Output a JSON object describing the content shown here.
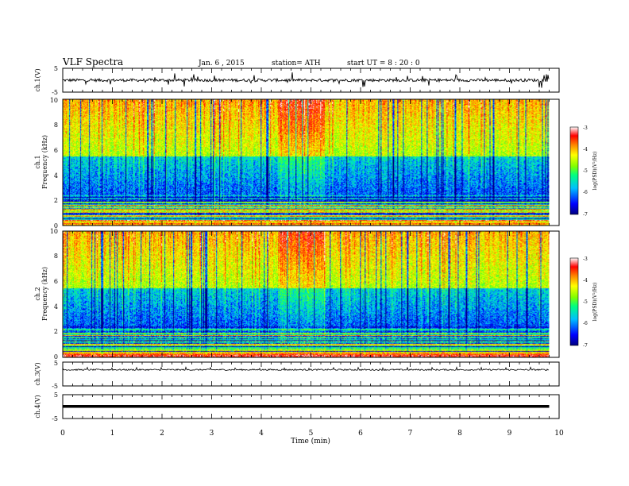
{
  "header": {
    "title": "VLF  Spectra",
    "date": "Jan. 6 , 2015",
    "station": "station= ATH",
    "start": "start  UT  =   8 : 20 : 0"
  },
  "colors": {
    "colormap": [
      "#000080",
      "#0000ff",
      "#00bfff",
      "#00ff80",
      "#80ff00",
      "#ffff00",
      "#ff8000",
      "#ff0000",
      "#ffffff"
    ]
  },
  "chart_data": [
    {
      "type": "line",
      "id": "ch1-waveform",
      "ylabel": "ch.1(V)",
      "ylim": [
        -5,
        5
      ],
      "yticks": [
        "5",
        "-5"
      ],
      "baseline": 0,
      "amplitude": 1.2
    },
    {
      "type": "heatmap",
      "id": "ch1-spectrogram",
      "ylabel_channel": "ch.1",
      "ylabel": "Frequency  (kHz)",
      "ylim": [
        0,
        10
      ],
      "yticks": [
        "0",
        "2",
        "4",
        "6",
        "8",
        "10"
      ],
      "colorbar": {
        "label": "log(PSD)(V²/Hz)",
        "range": [
          -7,
          -3
        ],
        "ticks": [
          "-3",
          "-4",
          "-5",
          "-6",
          "-7"
        ]
      }
    },
    {
      "type": "heatmap",
      "id": "ch2-spectrogram",
      "ylabel_channel": "ch.2",
      "ylabel": "Frequency  (kHz)",
      "ylim": [
        0,
        10
      ],
      "yticks": [
        "0",
        "2",
        "4",
        "6",
        "8",
        "10"
      ],
      "colorbar": {
        "label": "log(PSD)(V²/Hz)",
        "range": [
          -7,
          -3
        ],
        "ticks": [
          "-3",
          "-4",
          "-5",
          "-6",
          "-7"
        ]
      }
    },
    {
      "type": "line",
      "id": "ch3-waveform",
      "ylabel": "ch.3(V)",
      "ylim": [
        -5,
        5
      ],
      "yticks": [
        "5",
        "-5"
      ],
      "baseline": 1.8,
      "amplitude": 0.6
    },
    {
      "type": "line",
      "id": "ch4-waveform",
      "ylabel": "ch.4(V)",
      "ylim": [
        -5,
        5
      ],
      "yticks": [
        "5",
        "-5"
      ],
      "baseline": 0,
      "amplitude": 0.15
    }
  ],
  "xaxis": {
    "label": "Time  (min)",
    "xlim": [
      0,
      10
    ],
    "data_end": 9.8,
    "ticks": [
      "0",
      "1",
      "2",
      "3",
      "4",
      "5",
      "6",
      "7",
      "8",
      "9",
      "10"
    ]
  }
}
